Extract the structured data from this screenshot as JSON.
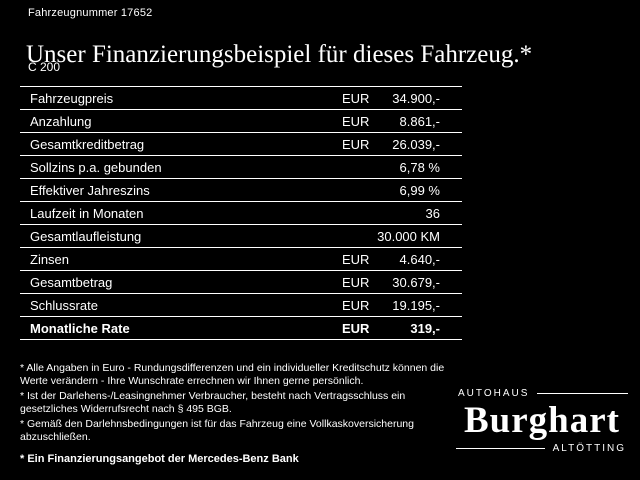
{
  "header": {
    "vehicle_number": "Fahrzeugnummer 17652",
    "title": "Unser Finanzierungsbeispiel für dieses Fahrzeug.*",
    "model": "C 200"
  },
  "table": {
    "rows": [
      {
        "label": "Fahrzeugpreis",
        "currency": "EUR",
        "value": "34.900,-"
      },
      {
        "label": "Anzahlung",
        "currency": "EUR",
        "value": "8.861,-"
      },
      {
        "label": "Gesamtkreditbetrag",
        "currency": "EUR",
        "value": "26.039,-"
      },
      {
        "label": "Sollzins p.a. gebunden",
        "currency": "",
        "value": "6,78 %"
      },
      {
        "label": "Effektiver Jahreszins",
        "currency": "",
        "value": "6,99 %"
      },
      {
        "label": "Laufzeit in Monaten",
        "currency": "",
        "value": "36"
      },
      {
        "label": "Gesamtlaufleistung",
        "currency": "",
        "value": "30.000 KM"
      },
      {
        "label": "Zinsen",
        "currency": "EUR",
        "value": "4.640,-"
      },
      {
        "label": "Gesamtbetrag",
        "currency": "EUR",
        "value": "30.679,-"
      },
      {
        "label": "Schlussrate",
        "currency": "EUR",
        "value": "19.195,-"
      },
      {
        "label": "Monatliche Rate",
        "currency": "EUR",
        "value": "319,-"
      }
    ]
  },
  "footnotes": [
    "* Alle Angaben in Euro - Rundungsdifferenzen und ein individueller Kreditschutz können die Werte verändern - Ihre Wunschrate errechnen wir Ihnen gerne persönlich.",
    "* Ist der Darlehens-/Leasingnehmer Verbraucher, besteht nach Vertragsschluss ein gesetzliches Widerrufsrecht nach § 495 BGB.",
    "* Gemäß den Darlehnsbedingungen ist für das Fahrzeug eine Vollkaskoversicherung abzuschließen."
  ],
  "footer": {
    "financing_note": "* Ein Finanzierungsangebot der Mercedes-Benz Bank"
  },
  "logo": {
    "top": "AUTOHAUS",
    "name": "Burghart",
    "bottom": "ALTÖTTING"
  },
  "colors": {
    "background": "#000000",
    "text": "#ffffff",
    "rule": "#ffffff"
  }
}
